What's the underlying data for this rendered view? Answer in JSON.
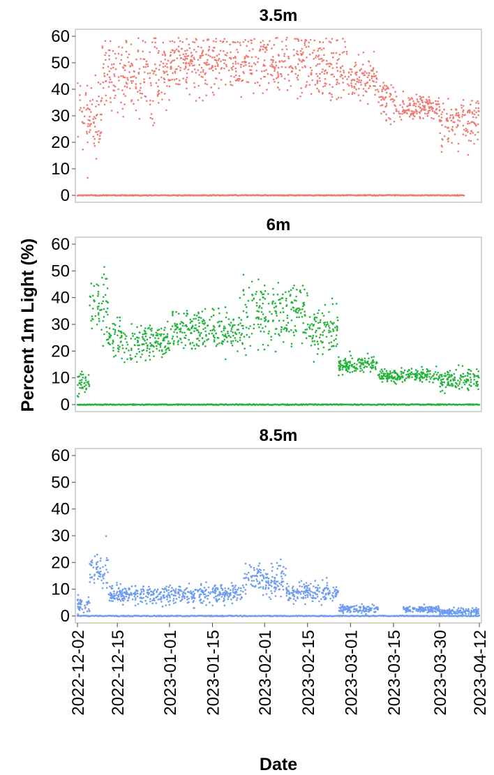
{
  "chart_data": {
    "type": "scatter",
    "x_axis": {
      "label": "Date",
      "ticks": [
        "2022-12-02",
        "2022-12-15",
        "2023-01-01",
        "2023-01-15",
        "2023-02-01",
        "2023-02-15",
        "2023-03-01",
        "2023-03-15",
        "2023-03-30",
        "2023-04-12"
      ],
      "range": [
        "2022-12-02",
        "2023-04-12"
      ]
    },
    "y_axis": {
      "label": "Percent 1m Light (%)",
      "ticks": [
        0,
        10,
        20,
        30,
        40,
        50,
        60
      ],
      "range": [
        -2,
        62
      ]
    },
    "grid": false,
    "panels": [
      {
        "title": "3.5m",
        "color": "#f07a72",
        "bands": [
          {
            "from": "2022-12-02",
            "to": "2022-12-10",
            "center": 30,
            "spread": 12
          },
          {
            "from": "2022-12-10",
            "to": "2023-01-01",
            "center": 46,
            "spread": 12
          },
          {
            "from": "2023-01-01",
            "to": "2023-02-15",
            "center": 50,
            "spread": 9
          },
          {
            "from": "2023-02-15",
            "to": "2023-02-28",
            "center": 48,
            "spread": 11
          },
          {
            "from": "2023-02-28",
            "to": "2023-03-10",
            "center": 44,
            "spread": 6
          },
          {
            "from": "2023-03-10",
            "to": "2023-03-15",
            "center": 36,
            "spread": 6
          },
          {
            "from": "2023-03-15",
            "to": "2023-03-30",
            "center": 33,
            "spread": 4
          },
          {
            "from": "2023-03-30",
            "to": "2023-04-12",
            "center": 28,
            "spread": 8
          }
        ],
        "zero_line": true
      },
      {
        "title": "6m",
        "color": "#22b33a",
        "bands": [
          {
            "from": "2022-12-02",
            "to": "2022-12-06",
            "center": 8,
            "spread": 4
          },
          {
            "from": "2022-12-06",
            "to": "2022-12-12",
            "center": 38,
            "spread": 9
          },
          {
            "from": "2022-12-12",
            "to": "2023-01-01",
            "center": 24,
            "spread": 6
          },
          {
            "from": "2023-01-01",
            "to": "2023-01-25",
            "center": 28,
            "spread": 6
          },
          {
            "from": "2023-01-25",
            "to": "2023-02-15",
            "center": 34,
            "spread": 10
          },
          {
            "from": "2023-02-15",
            "to": "2023-02-25",
            "center": 28,
            "spread": 7
          },
          {
            "from": "2023-02-25",
            "to": "2023-03-10",
            "center": 15,
            "spread": 3
          },
          {
            "from": "2023-03-10",
            "to": "2023-03-30",
            "center": 11,
            "spread": 2
          },
          {
            "from": "2023-03-30",
            "to": "2023-04-12",
            "center": 9,
            "spread": 3
          }
        ],
        "zero_line": true
      },
      {
        "title": "8.5m",
        "color": "#6d9cf2",
        "bands": [
          {
            "from": "2022-12-02",
            "to": "2022-12-06",
            "center": 4,
            "spread": 3
          },
          {
            "from": "2022-12-06",
            "to": "2022-12-12",
            "center": 17,
            "spread": 5
          },
          {
            "from": "2022-12-12",
            "to": "2023-01-25",
            "center": 8,
            "spread": 3
          },
          {
            "from": "2023-01-25",
            "to": "2023-02-08",
            "center": 14,
            "spread": 5
          },
          {
            "from": "2023-02-08",
            "to": "2023-02-25",
            "center": 9,
            "spread": 3
          },
          {
            "from": "2023-02-25",
            "to": "2023-03-10",
            "center": 2.5,
            "spread": 1.2
          },
          {
            "from": "2023-03-18",
            "to": "2023-03-30",
            "center": 2.5,
            "spread": 1
          },
          {
            "from": "2023-03-30",
            "to": "2023-04-12",
            "center": 1.5,
            "spread": 1
          }
        ],
        "zero_line": true
      }
    ]
  }
}
